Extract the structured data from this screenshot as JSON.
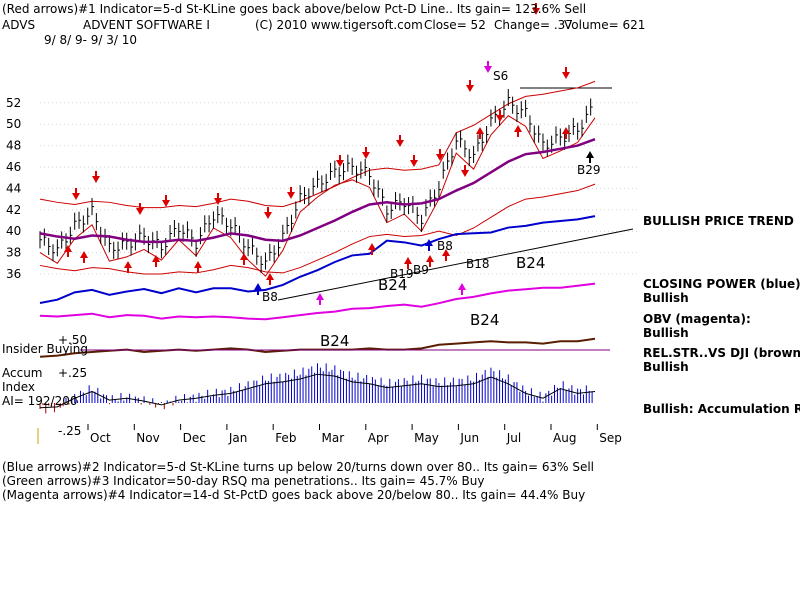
{
  "header": {
    "line1": "(Red arrows)#1 Indicator=5-d St-KLine goes back above/below Pct-D Line.. Its gain= 123.6% Sell",
    "symbol": "ADVS",
    "company": "ADVENT SOFTWARE I",
    "copyright": "(C) 2010 www.tigersoft.com",
    "close_label": "Close=  52",
    "change_label": "Change=  .37",
    "volume_label": "Volume= 621",
    "date_range": "9/ 8/ 9- 9/ 3/ 10"
  },
  "footer": {
    "line1": "(Blue arrows)#2 Indicator=5-d St-KLine turns up below 20/turns down over 80.. Its gain= 63% Sell",
    "line2": "(Green arrows)#3 Indicator=50-day RSQ ma penetrations.. Its gain= 45.7% Buy",
    "line3": "(Magenta arrows)#4 Indicator=14-d St-PctD goes back above 20/below 80.. Its gain= 44.4% Buy"
  },
  "right_panel": {
    "trend": "BULLISH PRICE TREND",
    "cp_title": "CLOSING POWER (blue):",
    "cp_value": "Bullish",
    "obv_title": "OBV (magenta):",
    "obv_value": "Bullish",
    "rs_title": "REL.STR..VS DJI (brown):",
    "rs_value": "Bullish",
    "accum": "Bullish: Accumulation Rising"
  },
  "lower_panel": {
    "insider_label": "Insider Buying",
    "accum_label_1": "Accum",
    "accum_label_2": "Index",
    "ai_label": "AI= 192/200",
    "tick_plus50": "+.50",
    "tick_plus25": "+.25",
    "tick_minus25": "-.25"
  },
  "annotations": {
    "s6": "S6",
    "b29": "B29",
    "b8a": "B8",
    "b8b": "B8",
    "b19": "B19",
    "b9": "B9",
    "b18": "B18",
    "b24_price": "B24",
    "b24_cp": "B24",
    "b24_obv": "B24",
    "b24_ai": "B24"
  },
  "chart_data": {
    "type": "line",
    "title": "ADVS  ADVENT SOFTWARE I",
    "y_ticks": [
      36,
      38,
      40,
      42,
      44,
      46,
      48,
      50,
      52
    ],
    "ylim": [
      35,
      53.5
    ],
    "months": [
      "Oct",
      "Nov",
      "Dec",
      "Jan",
      "Feb",
      "Mar",
      "Apr",
      "May",
      "Jun",
      "Jul",
      "Aug",
      "Sep"
    ],
    "x": [
      0,
      8,
      16,
      24,
      32,
      40,
      48,
      56,
      64,
      72,
      80,
      88,
      96,
      104,
      112,
      120,
      128,
      136,
      144,
      152,
      160,
      168,
      176,
      184,
      192,
      200,
      208,
      216,
      224,
      232,
      240,
      248,
      256
    ],
    "close": [
      39.2,
      38.2,
      40.5,
      41.8,
      38.4,
      38.8,
      39.5,
      38.5,
      40.4,
      38.9,
      41.5,
      40.6,
      38.5,
      37.0,
      39.4,
      43.0,
      44.4,
      45.5,
      46.0,
      45.3,
      42.0,
      42.8,
      41.2,
      44.2,
      48.5,
      47.0,
      50.2,
      52.0,
      51.0,
      48.0,
      48.7,
      49.5,
      51.8
    ],
    "ma50": [
      39.8,
      39.5,
      39.3,
      39.6,
      39.5,
      39.2,
      39.0,
      39.0,
      39.2,
      39.1,
      39.4,
      39.8,
      39.6,
      39.2,
      39.1,
      39.6,
      40.3,
      41.0,
      41.8,
      42.5,
      42.7,
      42.5,
      42.6,
      43.0,
      43.8,
      44.5,
      45.5,
      46.5,
      47.2,
      47.4,
      47.7,
      48.0,
      48.6
    ],
    "closing_power": [
      29.0,
      29.4,
      30.3,
      30.6,
      30.0,
      30.4,
      30.7,
      30.2,
      30.8,
      30.3,
      30.8,
      30.8,
      30.4,
      30.6,
      31.2,
      32.2,
      33.0,
      34.0,
      34.8,
      35.0,
      36.6,
      36.4,
      36.0,
      36.8,
      37.4,
      37.5,
      37.6,
      38.2,
      38.4,
      38.8,
      39.0,
      39.2,
      39.6
    ],
    "obv": [
      27.6,
      27.5,
      27.7,
      27.9,
      27.4,
      27.7,
      27.6,
      27.2,
      27.5,
      27.4,
      27.5,
      27.4,
      27.2,
      27.1,
      27.4,
      27.7,
      28.0,
      28.2,
      28.6,
      28.7,
      29.0,
      29.2,
      28.9,
      29.4,
      30.0,
      30.3,
      30.8,
      31.2,
      31.4,
      31.6,
      31.6,
      31.9,
      32.2
    ],
    "rel_strength": [
      -0.04,
      -0.03,
      -0.01,
      0.0,
      0.01,
      0.02,
      0.0,
      0.01,
      0.02,
      0.01,
      0.02,
      0.03,
      0.02,
      0.0,
      0.01,
      0.02,
      0.02,
      0.02,
      0.02,
      0.03,
      0.02,
      0.02,
      0.03,
      0.06,
      0.07,
      0.08,
      0.09,
      0.08,
      0.08,
      0.07,
      0.09,
      0.09,
      0.11
    ],
    "accum_index": [
      -0.05,
      -0.04,
      0.05,
      0.12,
      0.03,
      0.05,
      0.02,
      -0.02,
      0.03,
      0.05,
      0.08,
      0.1,
      0.15,
      0.2,
      0.22,
      0.25,
      0.3,
      0.28,
      0.22,
      0.2,
      0.16,
      0.18,
      0.2,
      0.17,
      0.18,
      0.2,
      0.27,
      0.2,
      0.1,
      0.05,
      0.15,
      0.1,
      0.12
    ],
    "insider_level": 0.5
  }
}
